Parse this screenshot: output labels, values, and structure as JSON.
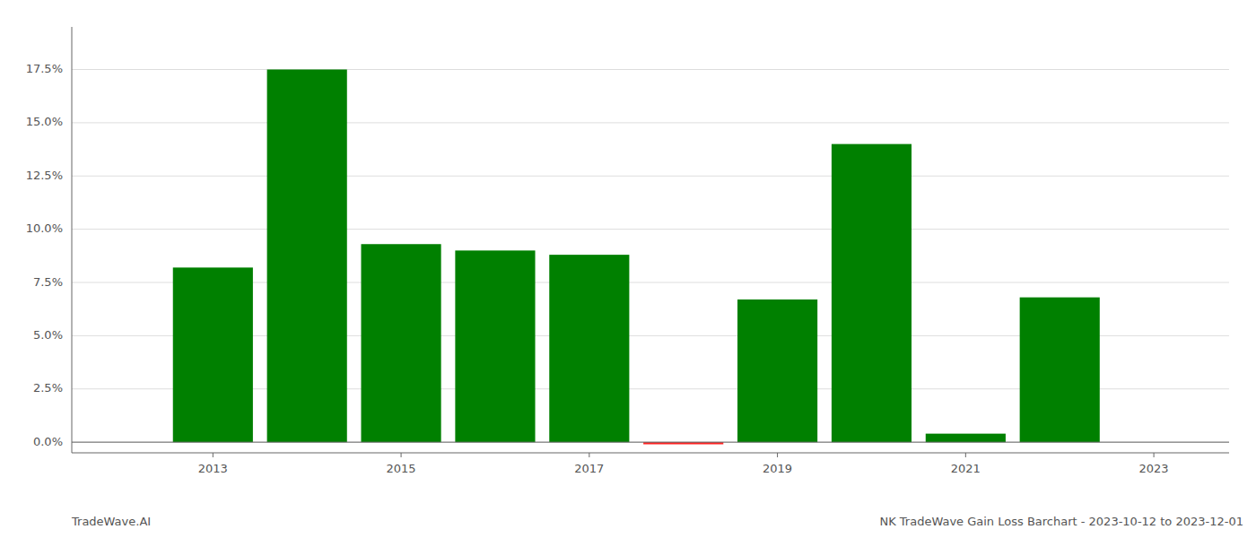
{
  "chart_data": {
    "type": "bar",
    "title": "NK TradeWave Gain Loss Barchart - 2023-10-12 to 2023-12-01",
    "annotations": [
      "TradeWave.AI"
    ],
    "x": [
      2013,
      2014,
      2015,
      2016,
      2017,
      2018,
      2019,
      2020,
      2021,
      2022
    ],
    "values": [
      0.082,
      0.175,
      0.093,
      0.09,
      0.088,
      -0.001,
      0.067,
      0.14,
      0.004,
      0.068
    ],
    "colors": [
      "#008000",
      "#008000",
      "#008000",
      "#008000",
      "#008000",
      "#ff2222",
      "#008000",
      "#008000",
      "#008000",
      "#008000"
    ],
    "xlim": [
      2011.5,
      2023.8
    ],
    "xticks": [
      2013,
      2015,
      2017,
      2019,
      2021,
      2023
    ],
    "ylim": [
      -0.005,
      0.195
    ],
    "yticks": [
      {
        "value": 0.0,
        "label": "0.0%"
      },
      {
        "value": 0.025,
        "label": "2.5%"
      },
      {
        "value": 0.05,
        "label": "5.0%"
      },
      {
        "value": 0.075,
        "label": "7.5%"
      },
      {
        "value": 0.1,
        "label": "10.0%"
      },
      {
        "value": 0.125,
        "label": "12.5%"
      },
      {
        "value": 0.15,
        "label": "15.0%"
      },
      {
        "value": 0.175,
        "label": "17.5%"
      }
    ],
    "grid": true
  }
}
